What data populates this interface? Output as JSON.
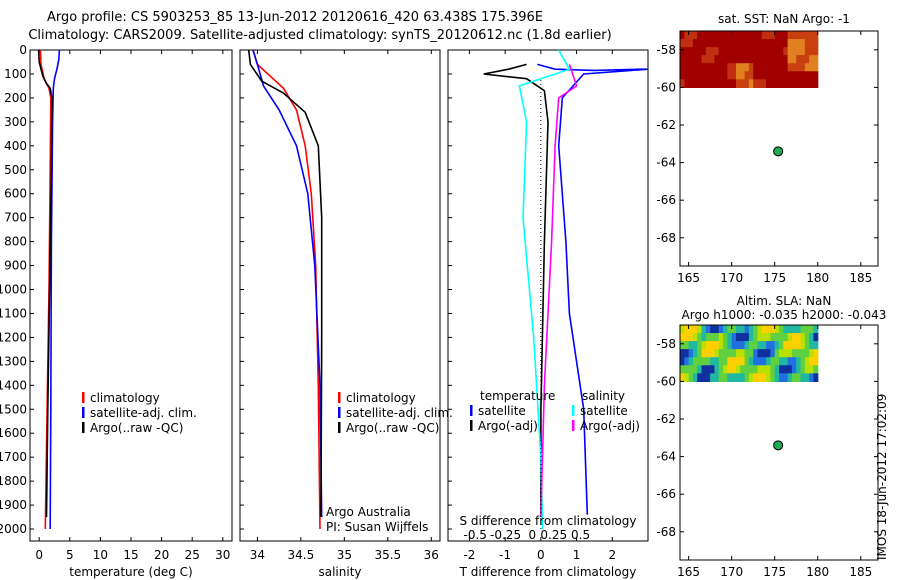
{
  "title": {
    "line1": "Argo profile: CS 5903253_85 13-Jun-2012 20120616_420 63.438S 175.396E",
    "line2": "Climatology: CARS2009. Satellite-adjusted climatology: synTS_20120612.nc (1.8d earlier)"
  },
  "footer_stamp": "IMOS 18-Jun-2012 17:02:09",
  "colors": {
    "climatology": "#ff0000",
    "satellite": "#0000ff",
    "argo": "#000000",
    "sat_s": "#00ffff",
    "argo_s": "#ff00ff",
    "marker": "#22aa55"
  },
  "chart_data": [
    {
      "type": "line",
      "id": "temperature",
      "xlabel": "temperature (deg C)",
      "ylabel": "",
      "xlim": [
        -1.5,
        31.5
      ],
      "ylim": [
        2050,
        0
      ],
      "xticks": [
        0,
        5,
        10,
        15,
        20,
        25,
        30
      ],
      "yticks": [
        0,
        100,
        200,
        300,
        400,
        500,
        600,
        700,
        800,
        900,
        1000,
        1100,
        1200,
        1300,
        1400,
        1500,
        1600,
        1700,
        1800,
        1900,
        2000
      ],
      "legend": [
        "climatology",
        "satellite-adj. clim.",
        "Argo(..raw -QC)"
      ],
      "series": [
        {
          "name": "climatology",
          "color": "red",
          "x": [
            0.2,
            0.3,
            0.8,
            1.6,
            1.9,
            1.8,
            1.6,
            1.3,
            1.0
          ],
          "y": [
            0,
            60,
            120,
            160,
            200,
            500,
            1000,
            1500,
            2000
          ]
        },
        {
          "name": "satellite-adj. clim.",
          "color": "blue",
          "x": [
            3.3,
            3.2,
            2.9,
            2.5,
            2.3,
            2.2,
            2.0,
            1.9,
            1.8
          ],
          "y": [
            0,
            40,
            80,
            120,
            160,
            300,
            800,
            1500,
            2000
          ]
        },
        {
          "name": "Argo(..raw -QC)",
          "color": "black",
          "x": [
            -0.1,
            0,
            0.6,
            1.2,
            1.8,
            2.1,
            2.0,
            1.7,
            1.4,
            1.2
          ],
          "y": [
            0,
            50,
            110,
            140,
            160,
            200,
            500,
            1000,
            1500,
            1950
          ]
        }
      ]
    },
    {
      "type": "line",
      "id": "salinity",
      "xlabel": "salinity",
      "xlim": [
        33.8,
        36.1
      ],
      "ylim": [
        2050,
        0
      ],
      "xticks": [
        34,
        34.5,
        35,
        35.5,
        36
      ],
      "legend": [
        "climatology",
        "satellite-adj. clim.",
        " Argo(..raw -QC)"
      ],
      "annotations": [
        "Argo Australia",
        "PI: Susan Wijffels"
      ],
      "series": [
        {
          "name": "climatology",
          "color": "red",
          "x": [
            33.95,
            34.0,
            34.15,
            34.3,
            34.45,
            34.55,
            34.62,
            34.67,
            34.7,
            34.72
          ],
          "y": [
            0,
            60,
            110,
            160,
            250,
            400,
            600,
            900,
            1400,
            2000
          ]
        },
        {
          "name": "satellite-adj. clim.",
          "color": "blue",
          "x": [
            33.95,
            34.0,
            34.07,
            34.25,
            34.45,
            34.58,
            34.66,
            34.72,
            34.74
          ],
          "y": [
            0,
            60,
            150,
            250,
            400,
            600,
            900,
            1400,
            1950
          ]
        },
        {
          "name": "Argo(..raw -QC)",
          "color": "black",
          "x": [
            33.9,
            33.92,
            34.05,
            34.3,
            34.55,
            34.7,
            34.74,
            34.74,
            34.73
          ],
          "y": [
            0,
            60,
            130,
            180,
            260,
            400,
            700,
            1200,
            1950
          ]
        }
      ]
    },
    {
      "type": "line",
      "id": "difference",
      "xlabel": "T difference from climatology",
      "xlabel_top": "S difference from climatology",
      "xlim": [
        -2.6,
        3.0
      ],
      "ylim": [
        2050,
        0
      ],
      "xticks": [
        -2,
        -1,
        0,
        1,
        2
      ],
      "xticks_top_labels": [
        "-0.5",
        "-0.25",
        "0",
        "0.25",
        "0.5"
      ],
      "legend_headers": [
        "temperature",
        "salinity"
      ],
      "legend": [
        "satellite",
        "Argo(-adj)",
        "satellite",
        "Argo(-adj)"
      ],
      "series": [
        {
          "name": "satellite",
          "color": "blue",
          "x": [
            -0.1,
            0.4,
            1.5,
            2.8,
            3.0,
            1.2,
            0.6,
            0.5,
            0.7,
            0.8,
            1.2,
            1.3
          ],
          "y": [
            60,
            80,
            85,
            80,
            80,
            100,
            200,
            400,
            800,
            1100,
            1500,
            1940
          ]
        },
        {
          "name": "Argo(-adj)",
          "color": "black",
          "x": [
            -0.4,
            -0.9,
            -1.6,
            -0.4,
            0.1,
            0.2,
            0.1,
            0.0,
            0.0
          ],
          "y": [
            60,
            80,
            100,
            120,
            170,
            300,
            800,
            1500,
            1950
          ]
        },
        {
          "name": "satellite",
          "color": "cyan",
          "x": [
            0.5,
            0.8,
            -0.6,
            -0.4,
            -0.5,
            -0.2,
            0.0,
            0.05
          ],
          "y": [
            0,
            80,
            150,
            300,
            700,
            1200,
            1700,
            2000
          ]
        },
        {
          "name": "Argo(-adj)",
          "color": "magenta",
          "x": [
            0.8,
            1.0,
            0.5,
            0.4,
            0.3,
            0.1,
            0.0
          ],
          "y": [
            60,
            150,
            200,
            400,
            800,
            1400,
            1950
          ]
        }
      ]
    },
    {
      "type": "heatmap",
      "id": "sst_map",
      "title": "sat. SST: NaN Argo: -1",
      "xlim": [
        164,
        187
      ],
      "ylim": [
        -69.5,
        -57
      ],
      "xticks": [
        165,
        170,
        175,
        180,
        185
      ],
      "yticks": [
        -58,
        -60,
        -62,
        -64,
        -66,
        -68
      ],
      "data_extent": {
        "lon": [
          164,
          180
        ],
        "lat": [
          -60,
          -57
        ]
      },
      "argo_marker": {
        "lon": 175.4,
        "lat": -63.4
      }
    },
    {
      "type": "heatmap",
      "id": "sla_map",
      "title": "Altim. SLA: NaN",
      "subtitle": "Argo h1000: -0.035 h2000: -0.043",
      "xlim": [
        164,
        187
      ],
      "ylim": [
        -69.5,
        -57
      ],
      "xticks": [
        165,
        170,
        175,
        180,
        185
      ],
      "yticks": [
        -58,
        -60,
        -62,
        -64,
        -66,
        -68
      ],
      "data_extent": {
        "lon": [
          164,
          180
        ],
        "lat": [
          -60,
          -57
        ]
      },
      "argo_marker": {
        "lon": 175.4,
        "lat": -63.4
      }
    }
  ]
}
